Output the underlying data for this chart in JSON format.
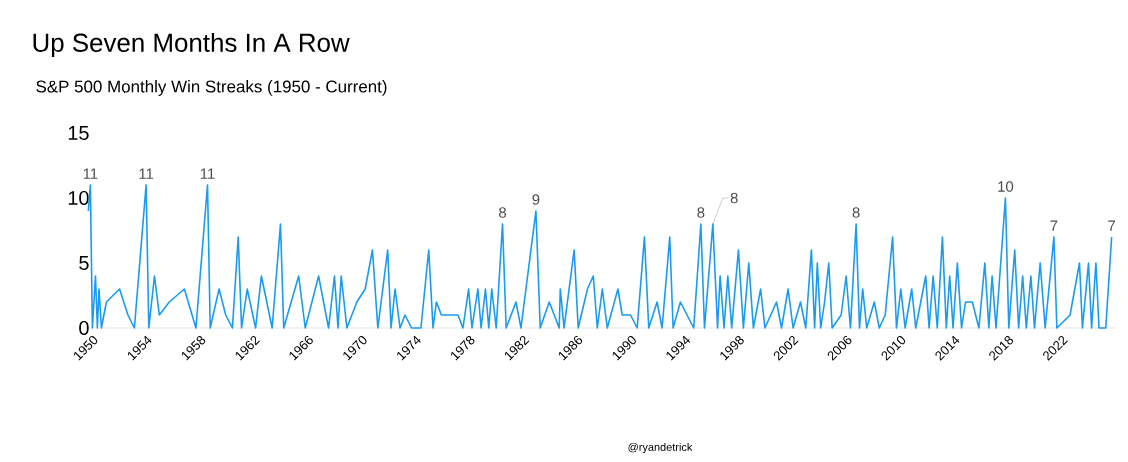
{
  "chart_data": {
    "type": "line",
    "title": "Up Seven Months In A Row",
    "subtitle": "S&P 500 Monthly Win Streaks (1950 - Current)",
    "color": "#1a9bf0",
    "marker": "none",
    "grid": false,
    "xlim": [
      1949.7,
      2026.2
    ],
    "xticks": [
      1950,
      1954,
      1958,
      1962,
      1966,
      1970,
      1974,
      1978,
      1982,
      1986,
      1990,
      1994,
      1998,
      2002,
      2006,
      2010,
      2014,
      2018,
      2022
    ],
    "ylim": [
      0,
      15
    ],
    "yticks": [
      0,
      5,
      10,
      15
    ],
    "x": [
      1949.8,
      1949.95,
      1950.1,
      1950.33,
      1950.47,
      1950.59,
      1950.77,
      1951.14,
      1952.12,
      1952.74,
      1953.22,
      1954.09,
      1954.29,
      1954.71,
      1955.07,
      1955.81,
      1956.93,
      1957.79,
      1958.65,
      1958.85,
      1959.51,
      1960.0,
      1960.5,
      1960.93,
      1961.18,
      1961.6,
      1962.22,
      1962.65,
      1963.45,
      1964.07,
      1964.31,
      1965.42,
      1965.91,
      1966.9,
      1967.64,
      1968.08,
      1968.34,
      1968.58,
      1969.0,
      1969.74,
      1970.36,
      1970.9,
      1971.3,
      1972.03,
      1972.28,
      1972.58,
      1972.95,
      1973.32,
      1973.8,
      1974.5,
      1975.08,
      1975.4,
      1975.65,
      1976.02,
      1977.25,
      1977.62,
      1978.04,
      1978.29,
      1978.73,
      1978.97,
      1979.29,
      1979.54,
      1979.76,
      1980.09,
      1980.56,
      1980.83,
      1981.56,
      1981.93,
      1983.04,
      1983.36,
      1984.03,
      1984.77,
      1984.85,
      1985.13,
      1985.88,
      1986.18,
      1986.87,
      1987.3,
      1987.6,
      1987.97,
      1988.34,
      1989.13,
      1989.45,
      1990.07,
      1990.56,
      1991.1,
      1991.42,
      1992.04,
      1992.41,
      1992.98,
      1993.23,
      1993.77,
      1994.76,
      1995.29,
      1995.56,
      1996.18,
      1996.53,
      1996.72,
      1997.01,
      1997.29,
      1997.58,
      1998.08,
      1998.45,
      1998.85,
      1999.19,
      1999.73,
      2000.05,
      2000.91,
      2001.28,
      2001.77,
      2002.14,
      2002.69,
      2003.08,
      2003.5,
      2003.74,
      2003.94,
      2004.19,
      2004.48,
      2004.79,
      2005.04,
      2005.71,
      2006.08,
      2006.4,
      2006.82,
      2007.07,
      2007.31,
      2007.61,
      2008.17,
      2008.54,
      2008.98,
      2009.53,
      2009.82,
      2010.14,
      2010.46,
      2010.95,
      2011.25,
      2011.99,
      2012.24,
      2012.54,
      2012.85,
      2013.23,
      2013.52,
      2013.77,
      2014.02,
      2014.34,
      2014.65,
      2014.95,
      2015.45,
      2015.94,
      2016.38,
      2016.68,
      2016.92,
      2017.21,
      2017.91,
      2018.16,
      2018.6,
      2018.89,
      2019.19,
      2019.46,
      2019.8,
      2020.07,
      2020.49,
      2020.86,
      2021.51,
      2021.73,
      2022.71,
      2023.41,
      2023.63,
      2024.08,
      2024.31,
      2024.63,
      2024.86,
      2025.36,
      2025.8
    ],
    "values": [
      9,
      11,
      0,
      4,
      0,
      3,
      0,
      2,
      3,
      1,
      0,
      11,
      0,
      4,
      1,
      2,
      3,
      0,
      11,
      0,
      3,
      1,
      0,
      7,
      0,
      3,
      0,
      4,
      0,
      8,
      0,
      4,
      0,
      4,
      0,
      4,
      0,
      4,
      0,
      2,
      3,
      6,
      0,
      6,
      0,
      3,
      0,
      1,
      0,
      0,
      6,
      0,
      2,
      1,
      1,
      0,
      3,
      0,
      3,
      0,
      3,
      0,
      3,
      0,
      8,
      0,
      2,
      0,
      9,
      0,
      2,
      0,
      3,
      0,
      6,
      0,
      3,
      4,
      0,
      3,
      0,
      3,
      1,
      1,
      0,
      7,
      0,
      2,
      0,
      7,
      0,
      2,
      0,
      8,
      0,
      8,
      0,
      4,
      0,
      4,
      0,
      6,
      0,
      5,
      0,
      3,
      0,
      2,
      0,
      3,
      0,
      2,
      0,
      6,
      0,
      5,
      0,
      2,
      5,
      0,
      1,
      4,
      0,
      8,
      0,
      3,
      0,
      2,
      0,
      1,
      7,
      0,
      3,
      0,
      3,
      0,
      4,
      0,
      4,
      0,
      7,
      0,
      4,
      0,
      5,
      0,
      2,
      2,
      0,
      5,
      0,
      4,
      0,
      10,
      0,
      6,
      0,
      4,
      0,
      4,
      0,
      5,
      0,
      7,
      0,
      1,
      5,
      0,
      5,
      0,
      5,
      0,
      0,
      7
    ],
    "annotations": [
      {
        "text": "11",
        "x": 1949.95,
        "y": 11
      },
      {
        "text": "11",
        "x": 1954.09,
        "y": 11
      },
      {
        "text": "11",
        "x": 1958.65,
        "y": 11
      },
      {
        "text": "8",
        "x": 1980.56,
        "y": 8
      },
      {
        "text": "9",
        "x": 1983.04,
        "y": 9
      },
      {
        "text": "8",
        "x": 1995.29,
        "y": 8
      },
      {
        "text": "8",
        "x": 1996.18,
        "y": 8
      },
      {
        "text": "8",
        "x": 2006.82,
        "y": 8
      },
      {
        "text": "10",
        "x": 2017.91,
        "y": 10
      },
      {
        "text": "7",
        "x": 2021.51,
        "y": 7
      },
      {
        "text": "7",
        "x": 2025.8,
        "y": 7
      },
      "@ryandetrick"
    ]
  }
}
